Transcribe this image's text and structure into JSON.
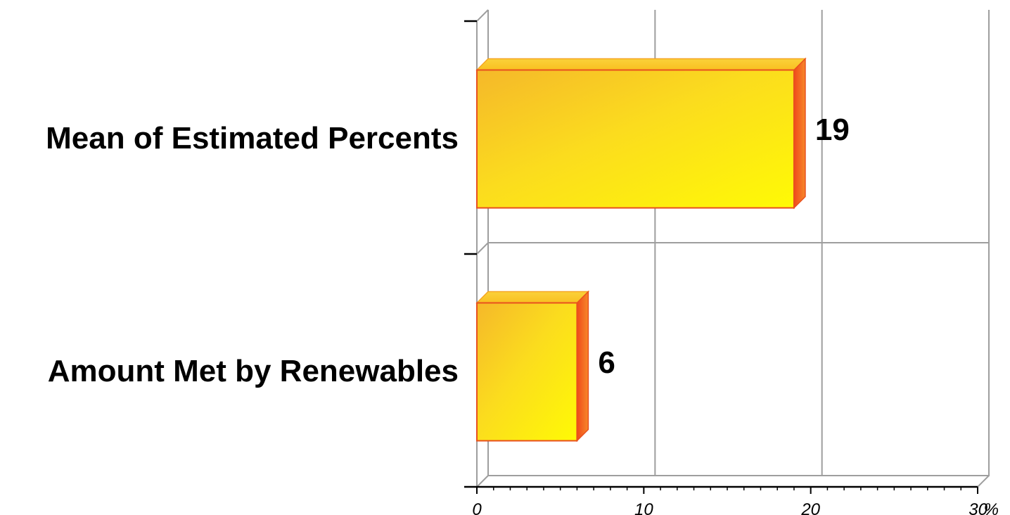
{
  "chart_data": {
    "type": "bar",
    "orientation": "horizontal",
    "style": "3d",
    "categories": [
      "Mean of Estimated Percents",
      "Amount Met by Renewables"
    ],
    "values": [
      19,
      6
    ],
    "xlim": [
      0,
      30
    ],
    "xticks": [
      "0",
      "10",
      "20",
      "30"
    ],
    "x_unit": "%",
    "grid": true,
    "colors": {
      "bar_light": "#fff700",
      "bar_mid": "#fbd51c",
      "bar_dark": "#f5a623",
      "bar_side": "#f2541c",
      "bar_edge": "#e8501e",
      "grid": "#9e9e9e",
      "axis": "#000000"
    }
  }
}
